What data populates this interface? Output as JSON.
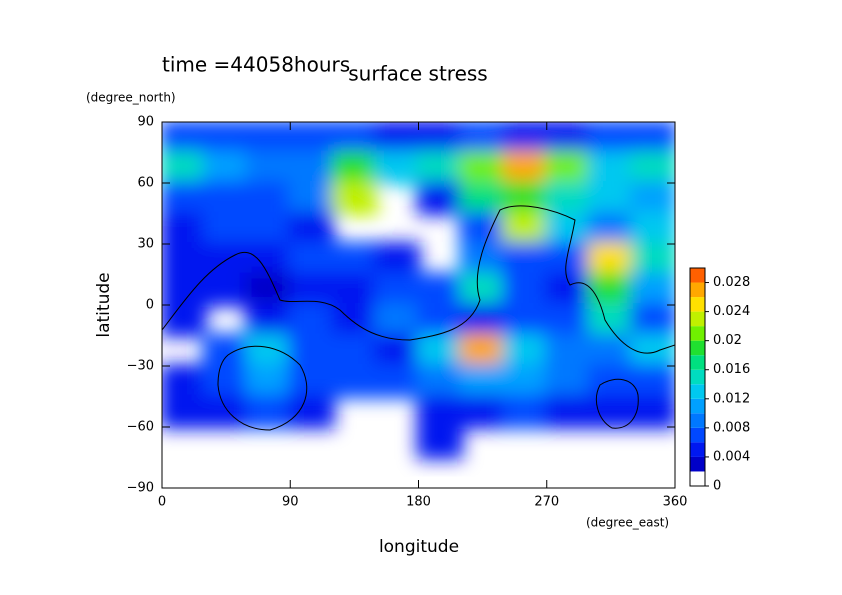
{
  "chart_data": {
    "type": "contourf",
    "title": "surface stress",
    "annotation": "time =44058hours",
    "x_label": "longitude",
    "y_label": "latitude",
    "x_unit": "(degree_east)",
    "y_unit": "(degree_north)",
    "xlim": [
      0,
      360
    ],
    "ylim": [
      -90,
      90
    ],
    "xticks": [
      0,
      90,
      180,
      270,
      360
    ],
    "yticks": [
      {
        "value": -90,
        "label": "−90"
      },
      {
        "value": -60,
        "label": "−60"
      },
      {
        "value": -30,
        "label": "−30"
      },
      0,
      30,
      60,
      90
    ],
    "x": [
      15,
      45,
      75,
      105,
      135,
      165,
      195,
      225,
      255,
      285,
      315,
      345
    ],
    "y": [
      82.5,
      67.5,
      52.5,
      37.5,
      22.5,
      7.5,
      -7.5,
      -22.5,
      -37.5,
      -52.5,
      -67.5,
      -82.5
    ],
    "z": [
      [
        0.006,
        0.006,
        0.006,
        0.006,
        0.006,
        0.004,
        0.004,
        0.006,
        0.004,
        0.004,
        0.006,
        0.006
      ],
      [
        0.014,
        0.01,
        0.008,
        0.008,
        0.018,
        0.012,
        0.014,
        0.02,
        0.026,
        0.02,
        0.012,
        0.014
      ],
      [
        0.006,
        0.006,
        0.006,
        0.008,
        0.022,
        null,
        0.004,
        0.016,
        0.018,
        0.014,
        0.012,
        0.01
      ],
      [
        0.004,
        0.006,
        0.006,
        0.004,
        null,
        null,
        null,
        0.006,
        0.022,
        0.012,
        0.008,
        0.012
      ],
      [
        0.004,
        0.004,
        0.004,
        0.006,
        0.006,
        0.004,
        null,
        0.008,
        0.006,
        0.006,
        0.024,
        0.014
      ],
      [
        0.004,
        0.004,
        0.002,
        0.004,
        0.004,
        0.006,
        0.006,
        0.014,
        0.006,
        0.004,
        0.018,
        0.01
      ],
      [
        0.004,
        null,
        0.004,
        0.006,
        0.004,
        0.008,
        0.006,
        0.004,
        0.006,
        0.006,
        0.014,
        0.006
      ],
      [
        null,
        0.006,
        0.012,
        0.006,
        0.006,
        0.004,
        0.012,
        0.026,
        0.012,
        0.008,
        0.008,
        0.012
      ],
      [
        0.004,
        0.006,
        0.01,
        0.006,
        0.006,
        0.006,
        0.008,
        0.01,
        0.01,
        0.008,
        0.006,
        0.006
      ],
      [
        0.004,
        0.004,
        0.006,
        0.004,
        null,
        null,
        0.004,
        0.004,
        0.006,
        0.004,
        0.004,
        0.004
      ],
      [
        null,
        null,
        null,
        null,
        null,
        null,
        0.004,
        null,
        null,
        null,
        null,
        null
      ],
      [
        null,
        null,
        null,
        null,
        null,
        null,
        null,
        null,
        null,
        null,
        null,
        null
      ]
    ],
    "levels": [
      0,
      0.002,
      0.004,
      0.006,
      0.008,
      0.01,
      0.012,
      0.014,
      0.016,
      0.018,
      0.02,
      0.022,
      0.024,
      0.026,
      0.028,
      0.03
    ],
    "colors": [
      "#ffffff",
      "#0000c8",
      "#0018f0",
      "#0048ff",
      "#0078ff",
      "#00a0ff",
      "#00c8f0",
      "#00dcc0",
      "#00e080",
      "#20e030",
      "#70f000",
      "#c0f000",
      "#ffe000",
      "#ffa800",
      "#ff6000"
    ],
    "cticks": [
      0,
      0.004,
      0.008,
      0.012,
      0.016,
      0.02,
      0.024,
      0.028
    ]
  }
}
